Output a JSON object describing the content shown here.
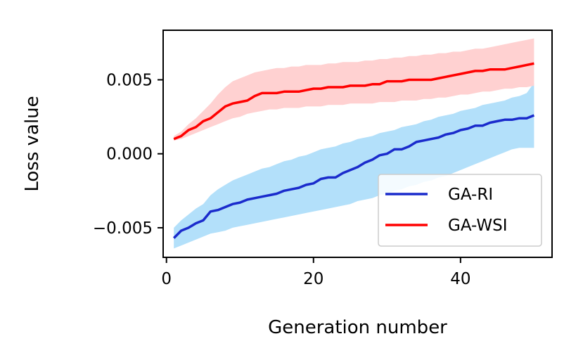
{
  "chart_data": {
    "type": "line",
    "title": "",
    "xlabel": "Generation number",
    "ylabel": "Loss value",
    "xlim": [
      -0.45,
      52.45
    ],
    "ylim": [
      -0.007,
      0.00835
    ],
    "xticks": [
      0,
      20,
      40
    ],
    "xtick_labels": [
      "0",
      "20",
      "40"
    ],
    "yticks": [
      -0.005,
      0.0,
      0.005
    ],
    "ytick_labels": [
      "−0.005",
      "0.000",
      "0.005"
    ],
    "grid": false,
    "legend_position": "lower right",
    "x": [
      1,
      2,
      3,
      4,
      5,
      6,
      7,
      8,
      9,
      10,
      11,
      12,
      13,
      14,
      15,
      16,
      17,
      18,
      19,
      20,
      21,
      22,
      23,
      24,
      25,
      26,
      27,
      28,
      29,
      30,
      31,
      32,
      33,
      34,
      35,
      36,
      37,
      38,
      39,
      40,
      41,
      42,
      43,
      44,
      45,
      46,
      47,
      48,
      49,
      50
    ],
    "series": [
      {
        "name": "GA-RI",
        "color": "#1a2bcc",
        "band_color": "#b3e0fa",
        "mean": [
          -0.0057,
          -0.0052,
          -0.005,
          -0.0047,
          -0.0045,
          -0.0039,
          -0.0038,
          -0.0036,
          -0.0034,
          -0.0033,
          -0.0031,
          -0.003,
          -0.0029,
          -0.0028,
          -0.0027,
          -0.0025,
          -0.0024,
          -0.0023,
          -0.0021,
          -0.002,
          -0.0017,
          -0.0016,
          -0.0016,
          -0.0013,
          -0.0011,
          -0.0009,
          -0.0006,
          -0.0004,
          -0.0001,
          0.0,
          0.0003,
          0.0003,
          0.0005,
          0.0008,
          0.0009,
          0.001,
          0.0011,
          0.0013,
          0.0014,
          0.0016,
          0.0017,
          0.0019,
          0.0019,
          0.0021,
          0.0022,
          0.0023,
          0.0023,
          0.0024,
          0.0024,
          0.0026
        ],
        "lower": [
          -0.0064,
          -0.0062,
          -0.006,
          -0.0058,
          -0.0056,
          -0.0054,
          -0.0053,
          -0.0052,
          -0.005,
          -0.0049,
          -0.0048,
          -0.0047,
          -0.0046,
          -0.0045,
          -0.0044,
          -0.0043,
          -0.0042,
          -0.0041,
          -0.004,
          -0.0039,
          -0.0038,
          -0.0037,
          -0.0036,
          -0.0035,
          -0.0034,
          -0.0032,
          -0.0031,
          -0.003,
          -0.0028,
          -0.0027,
          -0.0025,
          -0.0024,
          -0.0022,
          -0.0021,
          -0.0019,
          -0.0018,
          -0.0016,
          -0.0015,
          -0.0013,
          -0.0011,
          -0.0009,
          -0.0007,
          -0.0005,
          -0.0003,
          -0.0001,
          0.0001,
          0.0003,
          0.0004,
          0.0004,
          0.0004
        ],
        "upper": [
          -0.005,
          -0.0045,
          -0.0041,
          -0.0037,
          -0.0034,
          -0.0028,
          -0.0024,
          -0.0021,
          -0.0018,
          -0.0016,
          -0.0014,
          -0.0012,
          -0.001,
          -0.0009,
          -0.0007,
          -0.0005,
          -0.0004,
          -0.0002,
          -0.0001,
          0.0001,
          0.0003,
          0.0004,
          0.0005,
          0.0007,
          0.0008,
          0.001,
          0.0011,
          0.0012,
          0.0014,
          0.0015,
          0.0016,
          0.0018,
          0.0019,
          0.002,
          0.0022,
          0.0023,
          0.0025,
          0.0026,
          0.0027,
          0.0029,
          0.003,
          0.0031,
          0.0033,
          0.0034,
          0.0035,
          0.0036,
          0.0038,
          0.0039,
          0.0041,
          0.0048
        ]
      },
      {
        "name": "GA-WSI",
        "color": "#ff0000",
        "band_color": "#ffd1d1",
        "mean": [
          0.001,
          0.0012,
          0.0016,
          0.0018,
          0.0022,
          0.0024,
          0.0028,
          0.0032,
          0.0034,
          0.0035,
          0.0036,
          0.0039,
          0.0041,
          0.0041,
          0.0041,
          0.0042,
          0.0042,
          0.0042,
          0.0043,
          0.0044,
          0.0044,
          0.0045,
          0.0045,
          0.0045,
          0.0046,
          0.0046,
          0.0046,
          0.0047,
          0.0047,
          0.0049,
          0.0049,
          0.0049,
          0.005,
          0.005,
          0.005,
          0.005,
          0.0051,
          0.0052,
          0.0053,
          0.0054,
          0.0055,
          0.0056,
          0.0056,
          0.0057,
          0.0057,
          0.0057,
          0.0058,
          0.0059,
          0.006,
          0.0061
        ],
        "lower": [
          0.0009,
          0.001,
          0.0012,
          0.0014,
          0.0016,
          0.0018,
          0.002,
          0.0022,
          0.0024,
          0.0025,
          0.0027,
          0.0028,
          0.0029,
          0.003,
          0.003,
          0.0031,
          0.0031,
          0.0031,
          0.0032,
          0.0032,
          0.0032,
          0.0033,
          0.0033,
          0.0033,
          0.0034,
          0.0034,
          0.0034,
          0.0034,
          0.0035,
          0.0035,
          0.0035,
          0.0036,
          0.0036,
          0.0036,
          0.0037,
          0.0037,
          0.0038,
          0.0038,
          0.0039,
          0.004,
          0.004,
          0.0041,
          0.0042,
          0.0042,
          0.0043,
          0.0044,
          0.0044,
          0.0045,
          0.0045,
          0.0046
        ],
        "upper": [
          0.0012,
          0.0015,
          0.002,
          0.0024,
          0.0029,
          0.0034,
          0.004,
          0.0045,
          0.0049,
          0.0051,
          0.0053,
          0.0055,
          0.0056,
          0.0057,
          0.0058,
          0.0058,
          0.0059,
          0.0059,
          0.006,
          0.006,
          0.006,
          0.0061,
          0.0061,
          0.0062,
          0.0062,
          0.0062,
          0.0063,
          0.0063,
          0.0064,
          0.0064,
          0.0065,
          0.0065,
          0.0066,
          0.0066,
          0.0067,
          0.0067,
          0.0068,
          0.0068,
          0.0069,
          0.0069,
          0.007,
          0.0071,
          0.0071,
          0.0072,
          0.0073,
          0.0074,
          0.0075,
          0.0076,
          0.0077,
          0.0078
        ]
      }
    ]
  }
}
